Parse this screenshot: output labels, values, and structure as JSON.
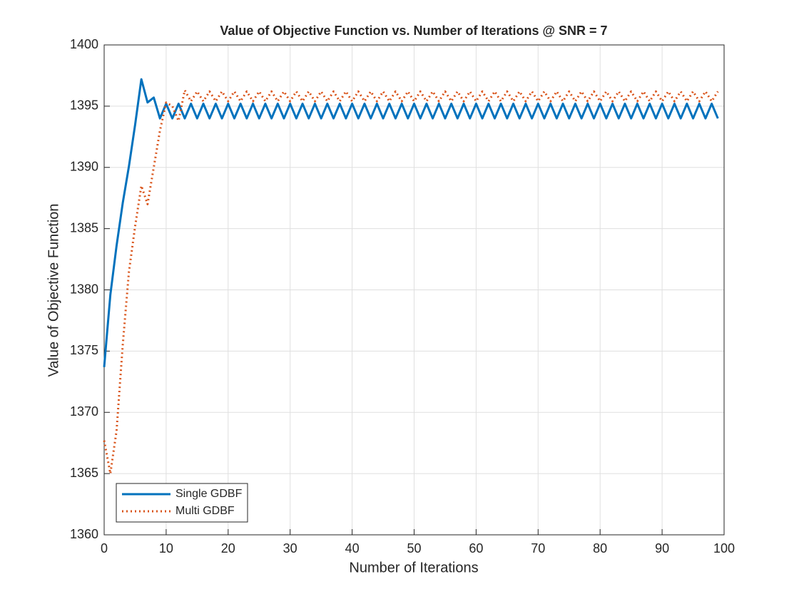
{
  "chart_data": {
    "type": "line",
    "title": "Value of Objective Function vs. Number of Iterations @ SNR = 7",
    "x_label": "Number of Iterations",
    "y_label": "Value of Objective Function",
    "x": [
      0,
      1,
      2,
      3,
      4,
      5,
      6,
      7,
      8,
      9,
      10,
      11,
      12,
      13,
      14,
      15,
      16,
      17,
      18,
      19,
      20,
      21,
      22,
      23,
      24,
      25,
      26,
      27,
      28,
      29,
      30,
      31,
      32,
      33,
      34,
      35,
      36,
      37,
      38,
      39,
      40,
      41,
      42,
      43,
      44,
      45,
      46,
      47,
      48,
      49,
      50,
      51,
      52,
      53,
      54,
      55,
      56,
      57,
      58,
      59,
      60,
      61,
      62,
      63,
      64,
      65,
      66,
      67,
      68,
      69,
      70,
      71,
      72,
      73,
      74,
      75,
      76,
      77,
      78,
      79,
      80,
      81,
      82,
      83,
      84,
      85,
      86,
      87,
      88,
      89,
      90,
      91,
      92,
      93,
      94,
      95,
      96,
      97,
      98,
      99
    ],
    "series": [
      {
        "name": "Single GDBF",
        "color": "#0072BD",
        "style": "solid",
        "values": [
          1373.7,
          1379.6,
          1383.6,
          1387.1,
          1390.1,
          1393.5,
          1397.2,
          1395.3,
          1395.7,
          1394.0,
          1395.2,
          1394.0,
          1395.2,
          1394.0,
          1395.2,
          1394.0,
          1395.2,
          1394.0,
          1395.2,
          1394.0,
          1395.2,
          1394.0,
          1395.2,
          1394.0,
          1395.2,
          1394.0,
          1395.2,
          1394.0,
          1395.2,
          1394.0,
          1395.2,
          1394.0,
          1395.2,
          1394.0,
          1395.2,
          1394.0,
          1395.2,
          1394.0,
          1395.2,
          1394.0,
          1395.2,
          1394.0,
          1395.2,
          1394.0,
          1395.2,
          1394.0,
          1395.2,
          1394.0,
          1395.2,
          1394.0,
          1395.2,
          1394.0,
          1395.2,
          1394.0,
          1395.2,
          1394.0,
          1395.2,
          1394.0,
          1395.2,
          1394.0,
          1395.2,
          1394.0,
          1395.2,
          1394.0,
          1395.2,
          1394.0,
          1395.2,
          1394.0,
          1395.2,
          1394.0,
          1395.2,
          1394.0,
          1395.2,
          1394.0,
          1395.2,
          1394.0,
          1395.2,
          1394.0,
          1395.2,
          1394.0,
          1395.2,
          1394.0,
          1395.2,
          1394.0,
          1395.2,
          1394.0,
          1395.2,
          1394.0,
          1395.2,
          1394.0,
          1395.2,
          1394.0,
          1395.2,
          1394.0,
          1395.2,
          1394.0,
          1395.2,
          1394.0,
          1395.2,
          1394.0
        ]
      },
      {
        "name": "Multi GDBF",
        "color": "#D95319",
        "style": "dotted",
        "values": [
          1367.7,
          1365.0,
          1368.5,
          1375.5,
          1381.5,
          1385.2,
          1388.5,
          1387.0,
          1390.0,
          1393.0,
          1395.3,
          1395.0,
          1393.8,
          1396.3,
          1395.4,
          1396.2,
          1395.4,
          1396.2,
          1395.4,
          1396.2,
          1395.4,
          1396.2,
          1395.4,
          1396.2,
          1395.4,
          1396.2,
          1395.4,
          1396.2,
          1395.4,
          1396.2,
          1395.4,
          1396.2,
          1395.4,
          1396.2,
          1395.4,
          1396.2,
          1395.4,
          1396.2,
          1395.4,
          1396.2,
          1395.4,
          1396.2,
          1395.4,
          1396.2,
          1395.4,
          1396.2,
          1395.4,
          1396.2,
          1395.4,
          1396.2,
          1395.4,
          1396.2,
          1395.4,
          1396.2,
          1395.4,
          1396.2,
          1395.4,
          1396.2,
          1395.4,
          1396.2,
          1395.4,
          1396.2,
          1395.4,
          1396.2,
          1395.4,
          1396.2,
          1395.4,
          1396.2,
          1395.4,
          1396.2,
          1395.4,
          1396.2,
          1395.4,
          1396.2,
          1395.4,
          1396.2,
          1395.4,
          1396.2,
          1395.4,
          1396.2,
          1395.4,
          1396.2,
          1395.4,
          1396.2,
          1395.4,
          1396.2,
          1395.4,
          1396.2,
          1395.4,
          1396.2,
          1395.4,
          1396.2,
          1395.4,
          1396.2,
          1395.4,
          1396.2,
          1395.4,
          1396.2,
          1395.4,
          1396.2
        ]
      }
    ],
    "xlim": [
      0,
      100
    ],
    "xticks": [
      0,
      10,
      20,
      30,
      40,
      50,
      60,
      70,
      80,
      90,
      100
    ],
    "ylim": [
      1360,
      1400
    ],
    "yticks": [
      1360,
      1365,
      1370,
      1375,
      1380,
      1385,
      1390,
      1395,
      1400
    ],
    "grid": true,
    "legend": "lower left"
  }
}
